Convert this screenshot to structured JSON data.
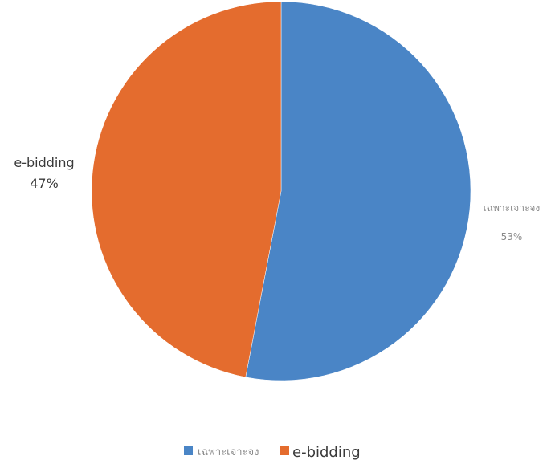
{
  "chart_data": {
    "type": "pie",
    "categories": [
      "เฉพาะเจาะจง",
      "e-bidding"
    ],
    "values": [
      53,
      47
    ],
    "value_labels": [
      "53%",
      "47%"
    ],
    "colors": [
      "#4a85c6",
      "#e46c2e"
    ],
    "legend": {
      "position": "bottom",
      "entries": [
        "เฉพาะเจาะจง",
        "e-bidding"
      ]
    }
  }
}
